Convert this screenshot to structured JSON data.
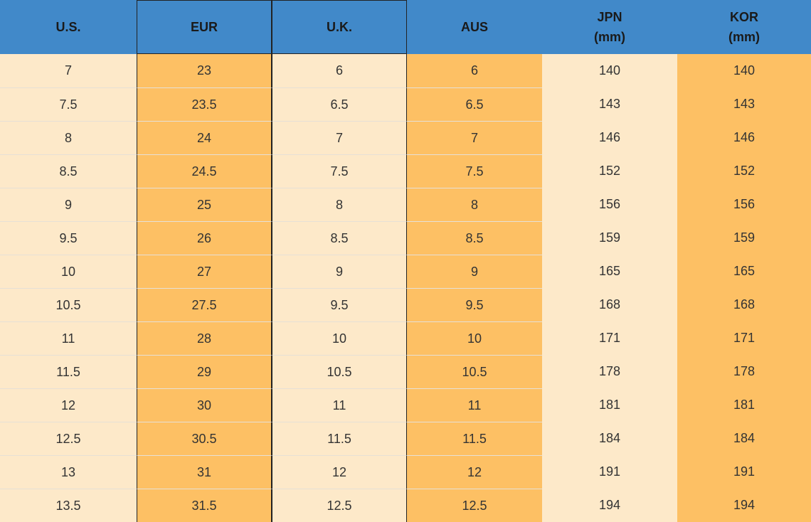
{
  "table": {
    "header": [
      [
        "U.S."
      ],
      [
        "EUR"
      ],
      [
        "U.K."
      ],
      [
        "AUS"
      ],
      [
        "JPN",
        "(mm)"
      ],
      [
        "KOR",
        "(mm)"
      ]
    ],
    "rows": [
      [
        "7",
        "23",
        "6",
        "6",
        "140",
        "140"
      ],
      [
        "7.5",
        "23.5",
        "6.5",
        "6.5",
        "143",
        "143"
      ],
      [
        "8",
        "24",
        "7",
        "7",
        "146",
        "146"
      ],
      [
        "8.5",
        "24.5",
        "7.5",
        "7.5",
        "152",
        "152"
      ],
      [
        "9",
        "25",
        "8",
        "8",
        "156",
        "156"
      ],
      [
        "9.5",
        "26",
        "8.5",
        "8.5",
        "159",
        "159"
      ],
      [
        "10",
        "27",
        "9",
        "9",
        "165",
        "165"
      ],
      [
        "10.5",
        "27.5",
        "9.5",
        "9.5",
        "168",
        "168"
      ],
      [
        "11",
        "28",
        "10",
        "10",
        "171",
        "171"
      ],
      [
        "11.5",
        "29",
        "10.5",
        "10.5",
        "178",
        "178"
      ],
      [
        "12",
        "30",
        "11",
        "11",
        "181",
        "181"
      ],
      [
        "12.5",
        "30.5",
        "11.5",
        "11.5",
        "184",
        "184"
      ],
      [
        "13",
        "31",
        "12",
        "12",
        "191",
        "191"
      ],
      [
        "13.5",
        "31.5",
        "12.5",
        "12.5",
        "194",
        "194"
      ]
    ]
  }
}
